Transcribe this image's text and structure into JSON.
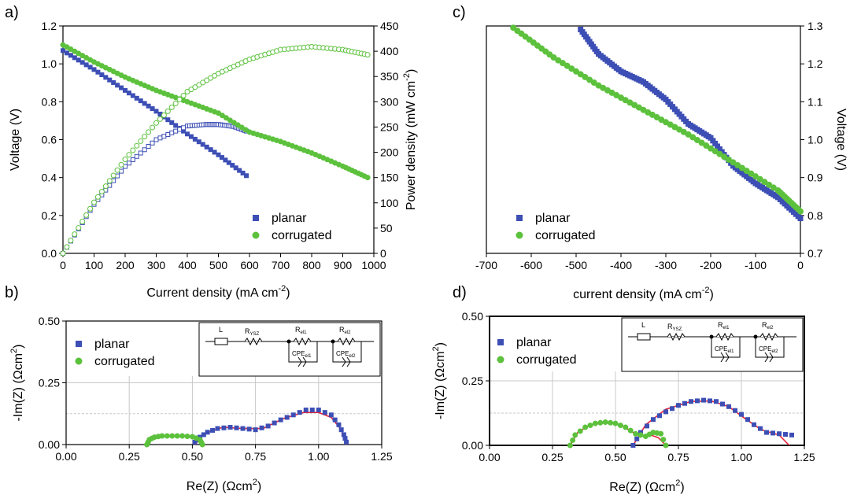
{
  "panels": {
    "a": "a)",
    "b": "b)",
    "c": "c)",
    "d": "d)"
  },
  "colors": {
    "planar": "#3d4fb5",
    "corrugated": "#5cc13c",
    "fit": "#e8223a"
  },
  "chart_data": [
    {
      "id": "a",
      "type": "scatter",
      "xlabel": "Current density (mA cm",
      "xlabel_sup": "-2",
      "xlabel_end": ")",
      "ylabel": "Voltage (V)",
      "y2label": "Power density (mW cm",
      "y2label_sup": "-2",
      "y2label_end": ")",
      "xlim": [
        0,
        1000
      ],
      "ylim": [
        0,
        1.2
      ],
      "y2lim": [
        0,
        450
      ],
      "xticks": [
        "0",
        "100",
        "200",
        "300",
        "400",
        "500",
        "600",
        "700",
        "800",
        "900",
        "1000"
      ],
      "yticks": [
        "0.0",
        "0.2",
        "0.4",
        "0.6",
        "0.8",
        "1.0",
        "1.2"
      ],
      "y2ticks": [
        "0",
        "50",
        "100",
        "150",
        "200",
        "250",
        "300",
        "350",
        "400",
        "450"
      ],
      "legend": [
        "planar",
        "corrugated"
      ],
      "legend_position": "bottom-right",
      "series": [
        {
          "name": "planar",
          "axis": "left",
          "filled": true,
          "points": [
            [
              0,
              1.07
            ],
            [
              100,
              0.97
            ],
            [
              200,
              0.86
            ],
            [
              300,
              0.75
            ],
            [
              400,
              0.63
            ],
            [
              500,
              0.52
            ],
            [
              590,
              0.41
            ]
          ]
        },
        {
          "name": "planar",
          "axis": "right",
          "filled": false,
          "points": [
            [
              0,
              0
            ],
            [
              100,
              97
            ],
            [
              200,
              172
            ],
            [
              300,
              225
            ],
            [
              400,
              252
            ],
            [
              460,
              255
            ],
            [
              500,
              255
            ],
            [
              550,
              251
            ],
            [
              590,
              242
            ]
          ]
        },
        {
          "name": "corrugated",
          "axis": "left",
          "filled": true,
          "points": [
            [
              0,
              1.1
            ],
            [
              100,
              1.01
            ],
            [
              200,
              0.93
            ],
            [
              300,
              0.86
            ],
            [
              400,
              0.8
            ],
            [
              500,
              0.74
            ],
            [
              600,
              0.64
            ],
            [
              700,
              0.59
            ],
            [
              800,
              0.53
            ],
            [
              900,
              0.46
            ],
            [
              980,
              0.4
            ]
          ]
        },
        {
          "name": "corrugated",
          "axis": "right",
          "filled": false,
          "points": [
            [
              0,
              0
            ],
            [
              100,
              101
            ],
            [
              200,
              186
            ],
            [
              300,
              258
            ],
            [
              400,
              320
            ],
            [
              500,
              356
            ],
            [
              600,
              384
            ],
            [
              700,
              403
            ],
            [
              800,
              409
            ],
            [
              900,
              403
            ],
            [
              980,
              393
            ]
          ]
        }
      ]
    },
    {
      "id": "b",
      "type": "scatter",
      "xlabel": "Re(Z) (Ωcm",
      "xlabel_sup": "2",
      "xlabel_end": ")",
      "ylabel": "-Im(Z) (Ωcm",
      "ylabel_sup": "2",
      "ylabel_end": ")",
      "xlim": [
        0,
        1.25
      ],
      "ylim": [
        0,
        0.5
      ],
      "xticks": [
        "0.00",
        "0.25",
        "0.50",
        "0.75",
        "1.00",
        "1.25"
      ],
      "yticks": [
        "0.00",
        "0.25",
        "0.50"
      ],
      "grid": true,
      "legend": [
        "planar",
        "corrugated"
      ],
      "legend_position": "top-left",
      "inset_labels": [
        "L",
        "R",
        "YSZ",
        "R",
        "el1",
        "R",
        "el2",
        "CPE",
        "el1",
        "CPE",
        "el2"
      ],
      "series": [
        {
          "name": "planar",
          "points": [
            [
              0.51,
              0.01
            ],
            [
              0.53,
              0.03
            ],
            [
              0.56,
              0.05
            ],
            [
              0.6,
              0.065
            ],
            [
              0.65,
              0.07
            ],
            [
              0.7,
              0.065
            ],
            [
              0.75,
              0.06
            ],
            [
              0.8,
              0.075
            ],
            [
              0.85,
              0.1
            ],
            [
              0.9,
              0.12
            ],
            [
              0.95,
              0.14
            ],
            [
              1.0,
              0.14
            ],
            [
              1.05,
              0.12
            ],
            [
              1.08,
              0.08
            ],
            [
              1.1,
              0.04
            ],
            [
              1.11,
              0.01
            ]
          ]
        },
        {
          "name": "corrugated",
          "points": [
            [
              0.32,
              0.0
            ],
            [
              0.33,
              0.02
            ],
            [
              0.35,
              0.03
            ],
            [
              0.38,
              0.035
            ],
            [
              0.42,
              0.035
            ],
            [
              0.46,
              0.035
            ],
            [
              0.5,
              0.032
            ],
            [
              0.53,
              0.02
            ],
            [
              0.54,
              0.0
            ]
          ]
        }
      ],
      "fits": [
        {
          "points": [
            [
              0.32,
              0.0
            ],
            [
              0.34,
              0.025
            ],
            [
              0.38,
              0.035
            ],
            [
              0.44,
              0.035
            ],
            [
              0.5,
              0.032
            ],
            [
              0.53,
              0.018
            ],
            [
              0.54,
              0.0
            ]
          ]
        },
        {
          "points": [
            [
              0.51,
              0.0
            ],
            [
              0.55,
              0.045
            ],
            [
              0.62,
              0.07
            ],
            [
              0.7,
              0.065
            ],
            [
              0.78,
              0.065
            ],
            [
              0.86,
              0.105
            ],
            [
              0.94,
              0.13
            ],
            [
              1.0,
              0.13
            ],
            [
              1.05,
              0.11
            ],
            [
              1.09,
              0.06
            ],
            [
              1.11,
              0.0
            ]
          ]
        }
      ]
    },
    {
      "id": "c",
      "type": "scatter",
      "xlabel": "current density (mA cm",
      "xlabel_sup": "-2",
      "xlabel_end": ")",
      "ylabel": "Voltage (V)",
      "xlim": [
        -700,
        0
      ],
      "ylim": [
        0.7,
        1.35
      ],
      "xticks": [
        "-700",
        "-600",
        "-500",
        "-400",
        "-300",
        "-200",
        "-100",
        "0"
      ],
      "yticks": [
        "0.7",
        "0.8",
        "0.9",
        "1.0",
        "1.1",
        "1.2",
        "1.3"
      ],
      "legend": [
        "planar",
        "corrugated"
      ],
      "legend_position": "bottom-left",
      "series": [
        {
          "name": "planar",
          "points": [
            [
              -490,
              1.34
            ],
            [
              -450,
              1.27
            ],
            [
              -400,
              1.22
            ],
            [
              -350,
              1.19
            ],
            [
              -300,
              1.14
            ],
            [
              -250,
              1.07
            ],
            [
              -200,
              1.03
            ],
            [
              -150,
              0.95
            ],
            [
              -100,
              0.9
            ],
            [
              -50,
              0.86
            ],
            [
              0,
              0.8
            ]
          ]
        },
        {
          "name": "corrugated",
          "points": [
            [
              -640,
              1.345
            ],
            [
              -550,
              1.26
            ],
            [
              -450,
              1.18
            ],
            [
              -350,
              1.11
            ],
            [
              -250,
              1.04
            ],
            [
              -150,
              0.96
            ],
            [
              -50,
              0.88
            ],
            [
              0,
              0.82
            ]
          ]
        }
      ]
    },
    {
      "id": "d",
      "type": "scatter",
      "xlabel": "Re(Z) (Ωcm",
      "xlabel_sup": "2",
      "xlabel_end": ")",
      "ylabel": "-Im(Z) (Ωcm",
      "ylabel_sup": "2",
      "ylabel_end": ")",
      "xlim": [
        0,
        1.25
      ],
      "ylim": [
        0,
        0.5
      ],
      "xticks": [
        "0.00",
        "0.25",
        "0.50",
        "0.75",
        "1.00",
        "1.25"
      ],
      "yticks": [
        "0.00",
        "0.25",
        "0.50"
      ],
      "grid": true,
      "legend": [
        "planar",
        "corrugated"
      ],
      "legend_position": "top-left",
      "inset_labels": [
        "L",
        "R",
        "YSZ",
        "R",
        "el1",
        "R",
        "el2",
        "CPE",
        "el1",
        "CPE",
        "el2"
      ],
      "series": [
        {
          "name": "planar",
          "points": [
            [
              0.57,
              0.0
            ],
            [
              0.6,
              0.05
            ],
            [
              0.65,
              0.1
            ],
            [
              0.7,
              0.13
            ],
            [
              0.75,
              0.155
            ],
            [
              0.8,
              0.17
            ],
            [
              0.85,
              0.175
            ],
            [
              0.9,
              0.17
            ],
            [
              0.95,
              0.15
            ],
            [
              1.0,
              0.12
            ],
            [
              1.05,
              0.08
            ],
            [
              1.1,
              0.05
            ],
            [
              1.15,
              0.045
            ],
            [
              1.2,
              0.04
            ]
          ]
        },
        {
          "name": "corrugated",
          "points": [
            [
              0.32,
              0.0
            ],
            [
              0.34,
              0.04
            ],
            [
              0.38,
              0.07
            ],
            [
              0.42,
              0.085
            ],
            [
              0.46,
              0.09
            ],
            [
              0.5,
              0.085
            ],
            [
              0.54,
              0.07
            ],
            [
              0.58,
              0.045
            ],
            [
              0.62,
              0.035
            ],
            [
              0.65,
              0.05
            ],
            [
              0.68,
              0.045
            ],
            [
              0.7,
              0.0
            ]
          ]
        }
      ],
      "fits": [
        {
          "points": [
            [
              0.32,
              0.0
            ],
            [
              0.35,
              0.05
            ],
            [
              0.4,
              0.08
            ],
            [
              0.46,
              0.088
            ],
            [
              0.52,
              0.08
            ],
            [
              0.57,
              0.05
            ],
            [
              0.6,
              0.035
            ],
            [
              0.64,
              0.04
            ],
            [
              0.67,
              0.03
            ],
            [
              0.7,
              0.0
            ]
          ]
        },
        {
          "points": [
            [
              0.57,
              0.0
            ],
            [
              0.62,
              0.08
            ],
            [
              0.7,
              0.14
            ],
            [
              0.8,
              0.17
            ],
            [
              0.88,
              0.172
            ],
            [
              0.95,
              0.15
            ],
            [
              1.02,
              0.1
            ],
            [
              1.08,
              0.06
            ],
            [
              1.15,
              0.04
            ],
            [
              1.19,
              0.0
            ]
          ]
        }
      ]
    }
  ]
}
